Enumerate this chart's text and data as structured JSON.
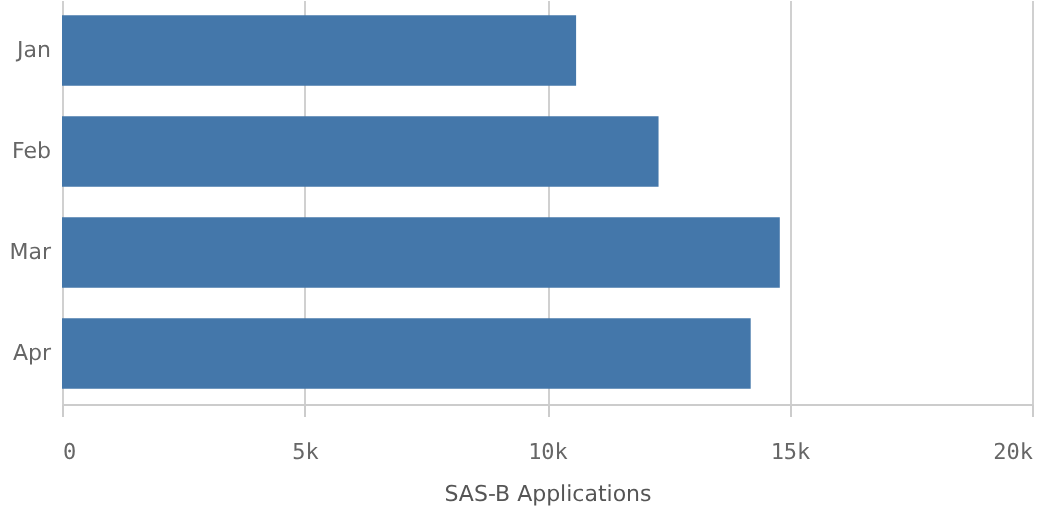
{
  "chart_data": {
    "type": "bar",
    "orientation": "horizontal",
    "xlabel": "SAS-B Applications",
    "categories": [
      "Jan",
      "Feb",
      "Mar",
      "Apr"
    ],
    "values": [
      10600,
      12300,
      14800,
      14200
    ],
    "color": "#4477aa",
    "xlim": [
      0,
      20000
    ],
    "xticks": [
      {
        "value": 0,
        "label": "0"
      },
      {
        "value": 5000,
        "label": "5k"
      },
      {
        "value": 10000,
        "label": "10k"
      },
      {
        "value": 15000,
        "label": "15k"
      },
      {
        "value": 20000,
        "label": "20k"
      }
    ],
    "grid": "x"
  }
}
